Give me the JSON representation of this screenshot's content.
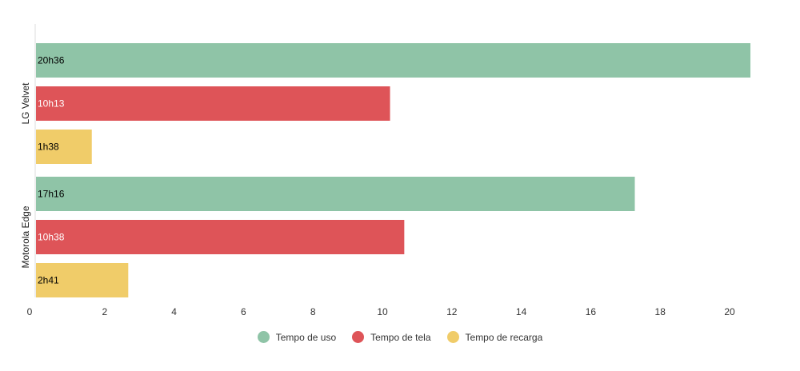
{
  "chart_data": {
    "type": "bar",
    "orientation": "horizontal",
    "categories": [
      "LG Velvet",
      "Motorola Edge"
    ],
    "series": [
      {
        "name": "Tempo de uso",
        "color": "#8fc4a7",
        "values": [
          20.6,
          17.27
        ],
        "labels": [
          "20h36",
          "17h16"
        ],
        "label_color": "#000000"
      },
      {
        "name": "Tempo de tela",
        "color": "#de5458",
        "values": [
          10.22,
          10.63
        ],
        "labels": [
          "10h13",
          "10h38"
        ],
        "label_color": "#ffffff"
      },
      {
        "name": "Tempo de recarga",
        "color": "#f0cc69",
        "values": [
          1.63,
          2.68
        ],
        "labels": [
          "1h38",
          "2h41"
        ],
        "label_color": "#000000"
      }
    ],
    "xlim": [
      0,
      20
    ],
    "xticks": [
      0,
      2,
      4,
      6,
      8,
      10,
      12,
      14,
      16,
      18,
      20
    ],
    "grid": false,
    "legend_position": "bottom"
  }
}
